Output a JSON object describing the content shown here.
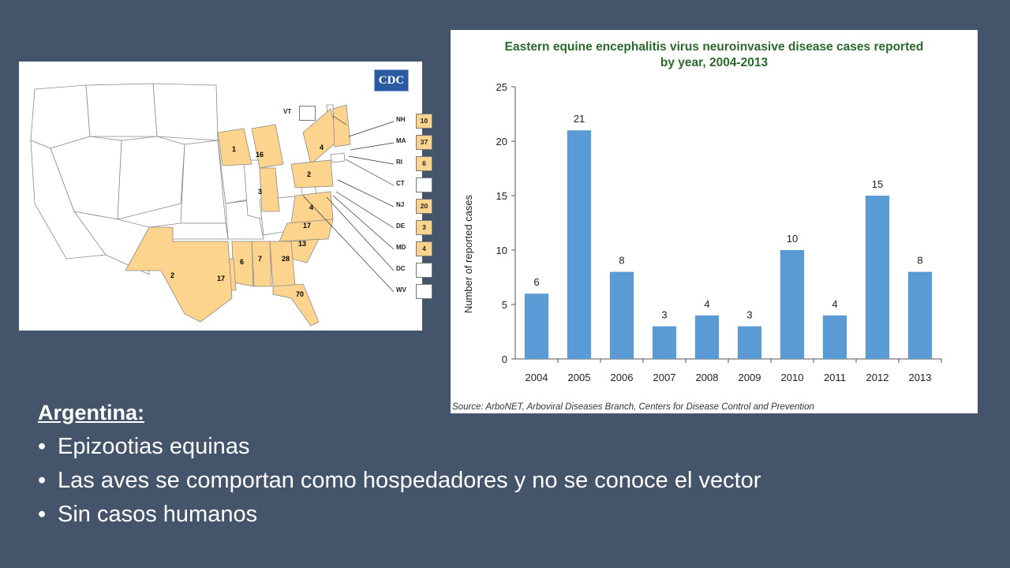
{
  "map": {
    "logo": "CDC",
    "state_counts": [
      "1",
      "16",
      "3",
      "4",
      "2",
      "4",
      "17",
      "13",
      "28",
      "7",
      "6",
      "17",
      "2",
      "70"
    ],
    "vt": {
      "abbr": "VT"
    },
    "legend": [
      {
        "abbr": "NH",
        "value": "10"
      },
      {
        "abbr": "MA",
        "value": "37"
      },
      {
        "abbr": "RI",
        "value": "6"
      },
      {
        "abbr": "CT",
        "value": ""
      },
      {
        "abbr": "NJ",
        "value": "20"
      },
      {
        "abbr": "DE",
        "value": "3"
      },
      {
        "abbr": "MD",
        "value": "4"
      },
      {
        "abbr": "DC",
        "value": ""
      },
      {
        "abbr": "WV",
        "value": ""
      }
    ],
    "colors": {
      "affected": "#fcd48e",
      "unaffected": "#ffffff",
      "border": "#888888"
    }
  },
  "chart_data": {
    "type": "bar",
    "title_line1": "Eastern equine encephalitis virus neuroinvasive disease cases reported",
    "title_line2": "by year, 2004-2013",
    "ylabel": "Number of reported cases",
    "xlabel": "",
    "categories": [
      "2004",
      "2005",
      "2006",
      "2007",
      "2008",
      "2009",
      "2010",
      "2011",
      "2012",
      "2013"
    ],
    "values": [
      6,
      21,
      8,
      3,
      4,
      3,
      10,
      4,
      15,
      8
    ],
    "ylim": [
      0,
      25
    ],
    "yticks": [
      0,
      5,
      10,
      15,
      20,
      25
    ],
    "grid": false,
    "bar_color": "#5b9bd5",
    "source": "Source: ArboNET, Arboviral Diseases Branch, Centers for Disease Control and Prevention"
  },
  "text": {
    "heading": "Argentina:",
    "bullets": [
      "Epizootias equinas",
      "Las aves se comportan como hospedadores y no se conoce el vector",
      "Sin casos humanos"
    ]
  }
}
